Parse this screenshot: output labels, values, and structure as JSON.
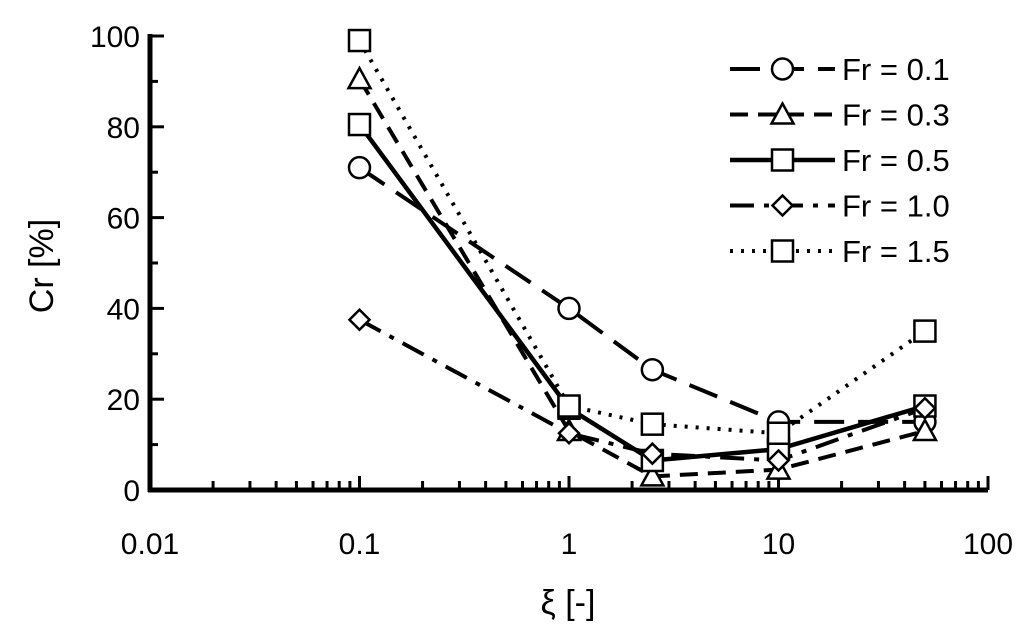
{
  "chart_data": {
    "type": "line",
    "title": "",
    "xlabel": "ξ [-]",
    "ylabel": "Cr [%]",
    "xscale": "log",
    "xlim": [
      0.01,
      100
    ],
    "ylim": [
      0,
      100
    ],
    "xticks": [
      0.01,
      0.1,
      1,
      10,
      100
    ],
    "xtick_labels": [
      "0.01",
      "0.1",
      "1",
      "10",
      "100"
    ],
    "yticks": [
      0,
      20,
      40,
      60,
      80,
      100
    ],
    "ytick_labels": [
      "0",
      "20",
      "40",
      "60",
      "80",
      "100"
    ],
    "grid": false,
    "legend_position": "top-right",
    "series": [
      {
        "name": "Fr = 0.1",
        "marker": "circle",
        "line_style": "long-dash",
        "x": [
          0.1,
          1,
          2.5,
          10,
          50
        ],
        "y": [
          71,
          40,
          26.5,
          15,
          15
        ]
      },
      {
        "name": "Fr = 0.3",
        "marker": "triangle",
        "line_style": "dash",
        "x": [
          0.1,
          1,
          2.5,
          10,
          50
        ],
        "y": [
          90.5,
          13,
          3,
          4.5,
          13
        ]
      },
      {
        "name": "Fr = 0.5",
        "marker": "square",
        "line_style": "solid",
        "x": [
          0.1,
          1,
          2.5,
          10,
          50
        ],
        "y": [
          80.5,
          18,
          6.5,
          9,
          18.5
        ]
      },
      {
        "name": "Fr = 1.0",
        "marker": "diamond",
        "line_style": "dash-dot",
        "x": [
          0.1,
          1,
          2.5,
          10,
          50
        ],
        "y": [
          37.5,
          12.5,
          8,
          6.5,
          18
        ]
      },
      {
        "name": "Fr = 1.5",
        "marker": "square",
        "line_style": "dotted",
        "x": [
          0.1,
          1,
          2.5,
          10,
          50
        ],
        "y": [
          99,
          18.5,
          14.5,
          12.5,
          35
        ]
      }
    ]
  },
  "colors": {
    "ink": "#000000",
    "marker_fill": "#ffffff",
    "background": "#ffffff"
  }
}
